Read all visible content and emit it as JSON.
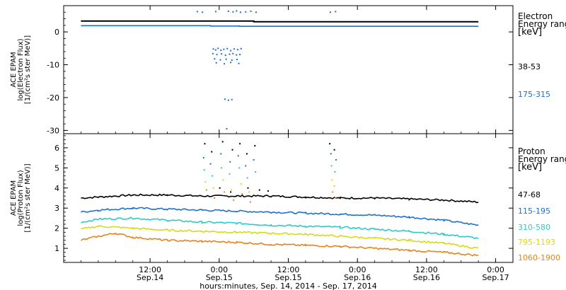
{
  "chart_data": [
    {
      "panel": "electron",
      "type": "scatter",
      "ylabel_lines": [
        "ACE EPAM",
        "log(Electron Flux)",
        "[1/(cm²s ster MeV)]"
      ],
      "legend_title_lines": [
        "Electron",
        "Energy ranges",
        "[keV]"
      ],
      "ylim": [
        -31,
        8
      ],
      "yticks": [
        0,
        -10,
        -20,
        -30
      ],
      "ytick_labels": [
        "0",
        "-10",
        "-20",
        "-30"
      ],
      "xlim_hours": [
        -27,
        51
      ],
      "series": [
        {
          "name": "38-53",
          "color": "#000000",
          "line": [
            [
              -24,
              3.3
            ],
            [
              6,
              3.3
            ],
            [
              6,
              3.1
            ],
            [
              45,
              3.1
            ]
          ],
          "points": []
        },
        {
          "name": "175-315",
          "color": "#1f6fd1",
          "line": [
            [
              -24,
              1.9
            ],
            [
              -1.5,
              1.9
            ],
            [
              -1.5,
              1.8
            ],
            [
              3.5,
              1.8
            ],
            [
              3.5,
              1.7
            ],
            [
              45,
              1.7
            ]
          ],
          "points": [
            [
              -3.8,
              6.2
            ],
            [
              -2.9,
              6.0
            ],
            [
              -0.6,
              6.2
            ],
            [
              1.6,
              6.3
            ],
            [
              2.4,
              6.1
            ],
            [
              3.0,
              6.4
            ],
            [
              3.7,
              6.0
            ],
            [
              4.6,
              6.1
            ],
            [
              5.5,
              6.3
            ],
            [
              6.4,
              6.0
            ],
            [
              19.3,
              6.0
            ],
            [
              20.2,
              6.2
            ],
            [
              -1.0,
              -5.2
            ],
            [
              -0.6,
              -5.5
            ],
            [
              -0.2,
              -5.0
            ],
            [
              0.3,
              -5.6
            ],
            [
              0.8,
              -5.3
            ],
            [
              1.4,
              -5.1
            ],
            [
              2.0,
              -5.7
            ],
            [
              2.6,
              -5.2
            ],
            [
              3.2,
              -5.4
            ],
            [
              3.8,
              -5.1
            ],
            [
              -1.1,
              -6.6
            ],
            [
              -0.4,
              -6.9
            ],
            [
              0.4,
              -6.7
            ],
            [
              1.1,
              -7.1
            ],
            [
              1.8,
              -6.8
            ],
            [
              2.4,
              -6.6
            ],
            [
              3.0,
              -7.0
            ],
            [
              3.6,
              -6.9
            ],
            [
              -0.8,
              -8.2
            ],
            [
              0.2,
              -8.5
            ],
            [
              1.2,
              -8.3
            ],
            [
              2.2,
              -8.6
            ],
            [
              3.1,
              -8.4
            ],
            [
              -0.5,
              -9.4
            ],
            [
              0.9,
              -9.7
            ],
            [
              2.0,
              -9.3
            ],
            [
              3.4,
              -9.6
            ],
            [
              1.0,
              -20.5
            ],
            [
              1.6,
              -20.8
            ],
            [
              2.2,
              -20.6
            ],
            [
              1.3,
              -29.5
            ]
          ]
        }
      ]
    },
    {
      "panel": "proton",
      "type": "scatter",
      "ylabel_lines": [
        "ACE EPAM",
        "log(Proton Flux)",
        "[1/(cm²s ster MeV)]"
      ],
      "legend_title_lines": [
        "Proton",
        "Energy ranges",
        "[keV]"
      ],
      "ylim": [
        0.3,
        6.7
      ],
      "yticks": [
        1,
        2,
        3,
        4,
        5,
        6
      ],
      "ytick_labels": [
        "1",
        "2",
        "3",
        "4",
        "5",
        "6"
      ],
      "xlim_hours": [
        -27,
        51
      ],
      "series": [
        {
          "name": "47-68",
          "color": "#000000",
          "line": [
            [
              -24,
              3.5
            ],
            [
              -21,
              3.55
            ],
            [
              -15,
              3.65
            ],
            [
              -9,
              3.65
            ],
            [
              -3,
              3.6
            ],
            [
              3,
              3.6
            ],
            [
              9,
              3.6
            ],
            [
              15,
              3.55
            ],
            [
              21,
              3.5
            ],
            [
              27,
              3.5
            ],
            [
              33,
              3.45
            ],
            [
              39,
              3.4
            ],
            [
              45,
              3.3
            ]
          ],
          "points": [
            [
              -2.5,
              6.2
            ],
            [
              -1.3,
              5.8
            ],
            [
              0.6,
              6.3
            ],
            [
              2.3,
              5.9
            ],
            [
              3.6,
              6.2
            ],
            [
              4.8,
              5.7
            ],
            [
              6.2,
              6.1
            ],
            [
              19.2,
              6.2
            ],
            [
              20.0,
              5.9
            ],
            [
              0.1,
              4.0
            ],
            [
              2.0,
              3.8
            ],
            [
              5.0,
              4.0
            ],
            [
              7.0,
              3.9
            ],
            [
              8.5,
              3.85
            ]
          ]
        },
        {
          "name": "115-195",
          "color": "#1f6fd1",
          "line": [
            [
              -24,
              2.8
            ],
            [
              -21,
              2.9
            ],
            [
              -15,
              3.0
            ],
            [
              -9,
              2.95
            ],
            [
              -3,
              2.9
            ],
            [
              3,
              2.85
            ],
            [
              9,
              2.8
            ],
            [
              15,
              2.75
            ],
            [
              21,
              2.7
            ],
            [
              27,
              2.65
            ],
            [
              33,
              2.55
            ],
            [
              39,
              2.4
            ],
            [
              45,
              2.15
            ]
          ],
          "points": [
            [
              -2.7,
              5.5
            ],
            [
              -1.5,
              5.2
            ],
            [
              0.3,
              5.7
            ],
            [
              1.9,
              5.3
            ],
            [
              3.3,
              5.6
            ],
            [
              4.6,
              5.1
            ],
            [
              6.0,
              5.4
            ],
            [
              19.4,
              5.7
            ],
            [
              20.3,
              5.4
            ]
          ]
        },
        {
          "name": "310-580",
          "color": "#2ec9c9",
          "line": [
            [
              -24,
              2.3
            ],
            [
              -21,
              2.45
            ],
            [
              -15,
              2.5
            ],
            [
              -9,
              2.4
            ],
            [
              -3,
              2.3
            ],
            [
              3,
              2.25
            ],
            [
              9,
              2.15
            ],
            [
              15,
              2.1
            ],
            [
              21,
              2.05
            ],
            [
              27,
              1.95
            ],
            [
              33,
              1.85
            ],
            [
              39,
              1.7
            ],
            [
              45,
              1.5
            ]
          ],
          "points": [
            [
              -2.6,
              4.9
            ],
            [
              -1.2,
              4.6
            ],
            [
              0.4,
              5.0
            ],
            [
              1.8,
              4.7
            ],
            [
              3.5,
              5.0
            ],
            [
              4.9,
              4.5
            ],
            [
              6.3,
              4.8
            ],
            [
              19.5,
              5.1
            ],
            [
              20.1,
              4.8
            ]
          ]
        },
        {
          "name": "795-1193",
          "color": "#d8d81a",
          "line": [
            [
              -24,
              1.95
            ],
            [
              -21,
              2.1
            ],
            [
              -15,
              2.0
            ],
            [
              -9,
              1.9
            ],
            [
              -3,
              1.85
            ],
            [
              3,
              1.8
            ],
            [
              9,
              1.75
            ],
            [
              15,
              1.7
            ],
            [
              21,
              1.6
            ],
            [
              27,
              1.5
            ],
            [
              33,
              1.4
            ],
            [
              39,
              1.25
            ],
            [
              45,
              1.0
            ]
          ],
          "points": [
            [
              -2.4,
              4.3
            ],
            [
              -1.0,
              4.0
            ],
            [
              0.7,
              4.4
            ],
            [
              2.1,
              3.9
            ],
            [
              3.8,
              4.2
            ],
            [
              5.2,
              3.8
            ],
            [
              19.6,
              4.4
            ],
            [
              20.0,
              4.1
            ]
          ]
        },
        {
          "name": "1060-1900",
          "color": "#e8821a",
          "line": [
            [
              -24,
              1.4
            ],
            [
              -21,
              1.6
            ],
            [
              -18,
              1.75
            ],
            [
              -15,
              1.55
            ],
            [
              -9,
              1.4
            ],
            [
              -3,
              1.35
            ],
            [
              3,
              1.3
            ],
            [
              9,
              1.2
            ],
            [
              15,
              1.15
            ],
            [
              21,
              1.1
            ],
            [
              27,
              1.0
            ],
            [
              33,
              0.9
            ],
            [
              39,
              0.8
            ],
            [
              45,
              0.65
            ]
          ],
          "points": [
            [
              -2.2,
              3.9
            ],
            [
              -0.8,
              3.5
            ],
            [
              0.9,
              3.8
            ],
            [
              2.5,
              3.4
            ],
            [
              4.0,
              3.7
            ],
            [
              5.4,
              3.3
            ],
            [
              19.7,
              3.8
            ],
            [
              20.2,
              3.5
            ]
          ]
        }
      ]
    }
  ],
  "x_axis": {
    "tick_hours": [
      -12,
      0,
      12,
      24,
      36,
      48
    ],
    "tick_time_labels": [
      "12:00",
      "0:00",
      "12:00",
      "0:00",
      "12:00",
      "0:00"
    ],
    "tick_date_labels": [
      "Sep.14",
      "Sep.15",
      "Sep.15",
      "Sep.16",
      "Sep.16",
      "Sep.17"
    ],
    "title": "hours:minutes, Sep. 14, 2014 - Sep. 17, 2014"
  }
}
